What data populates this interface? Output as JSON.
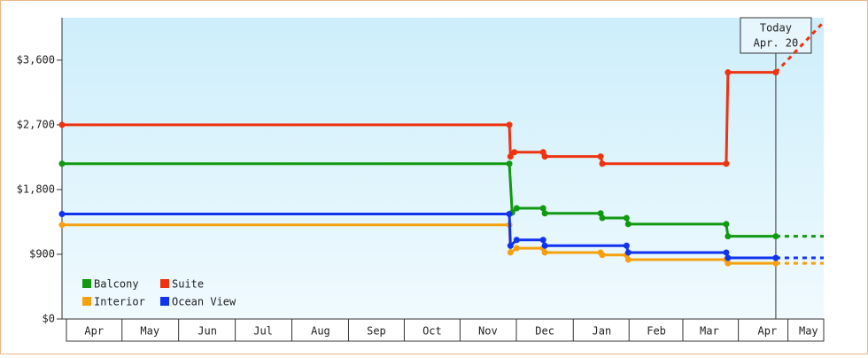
{
  "chart_data": {
    "type": "line",
    "xlim": [
      0,
      13.52
    ],
    "ylim": [
      0,
      4190
    ],
    "yticks": [
      {
        "value": 0,
        "label": "$0"
      },
      {
        "value": 900,
        "label": "$900"
      },
      {
        "value": 1800,
        "label": "$1,800"
      },
      {
        "value": 2700,
        "label": "$2,700"
      },
      {
        "value": 3600,
        "label": "$3,600"
      }
    ],
    "xticks": [
      {
        "value": 0.57,
        "label": "Apr"
      },
      {
        "value": 1.56,
        "label": "May"
      },
      {
        "value": 2.58,
        "label": "Jun"
      },
      {
        "value": 3.57,
        "label": "Jul"
      },
      {
        "value": 4.59,
        "label": "Aug"
      },
      {
        "value": 5.58,
        "label": "Sep"
      },
      {
        "value": 6.57,
        "label": "Oct"
      },
      {
        "value": 7.56,
        "label": "Nov"
      },
      {
        "value": 8.57,
        "label": "Dec"
      },
      {
        "value": 9.58,
        "label": "Jan"
      },
      {
        "value": 10.55,
        "label": "Feb"
      },
      {
        "value": 11.49,
        "label": "Mar"
      },
      {
        "value": 12.52,
        "label": "Apr"
      },
      {
        "value": 13.25,
        "label": "May"
      }
    ],
    "today": {
      "lines": [
        "Today",
        "Apr. 20"
      ],
      "x": 12.67
    },
    "legend": "lower left",
    "series": [
      {
        "name": "Balcony",
        "color": "#119911",
        "x": [
          0,
          7.94,
          7.99,
          8.07,
          8.54,
          8.57,
          9.56,
          9.59,
          10.02,
          10.05,
          11.79,
          11.82,
          12.67
        ],
        "values": [
          2160,
          2160,
          1480,
          1540,
          1540,
          1470,
          1470,
          1405,
          1405,
          1320,
          1320,
          1150,
          1150
        ],
        "projection": {
          "x": [
            12.67,
            13.52
          ],
          "values": [
            1150,
            1150
          ]
        }
      },
      {
        "name": "Suite",
        "color": "#ee3311",
        "x": [
          0,
          7.94,
          7.96,
          8.03,
          8.54,
          8.57,
          9.56,
          9.59,
          11.79,
          11.82,
          12.67
        ],
        "values": [
          2700,
          2700,
          2260,
          2320,
          2320,
          2260,
          2260,
          2160,
          2160,
          3430,
          3430
        ],
        "projection": {
          "x": [
            12.67,
            13.52
          ],
          "values": [
            3430,
            4130
          ]
        }
      },
      {
        "name": "Interior",
        "color": "#f5a10f",
        "x": [
          0,
          7.94,
          7.96,
          8.07,
          8.54,
          8.57,
          9.56,
          9.59,
          10.02,
          10.05,
          11.79,
          11.82,
          12.67
        ],
        "values": [
          1310,
          1310,
          925,
          985,
          985,
          925,
          925,
          890,
          890,
          825,
          825,
          775,
          775
        ],
        "projection": {
          "x": [
            12.67,
            13.52
          ],
          "values": [
            775,
            775
          ]
        }
      },
      {
        "name": "Ocean View",
        "color": "#1133ee",
        "x": [
          0,
          7.94,
          7.96,
          8.07,
          8.54,
          8.57,
          10.02,
          10.05,
          11.79,
          11.82,
          12.67
        ],
        "values": [
          1460,
          1460,
          1020,
          1100,
          1100,
          1020,
          1020,
          925,
          925,
          850,
          850
        ],
        "projection": {
          "x": [
            12.67,
            13.52
          ],
          "values": [
            850,
            850
          ]
        }
      }
    ]
  }
}
